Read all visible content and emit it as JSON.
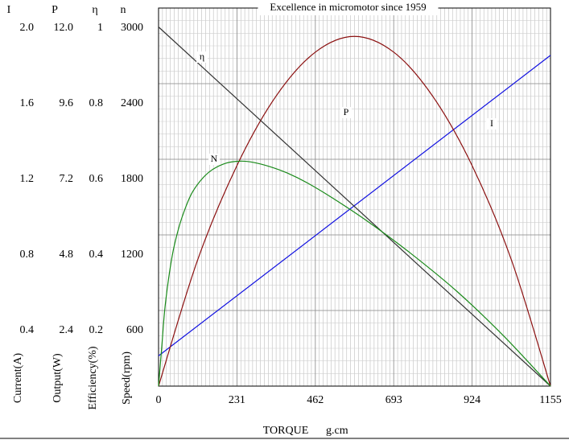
{
  "chart_data": {
    "type": "line",
    "title": "Excellence in micromotor since 1959",
    "xlabel": "TORQUE",
    "xunit": "g.cm",
    "xlim": [
      0,
      1155
    ],
    "x_ticks": [
      "0",
      "231",
      "462",
      "693",
      "924",
      "1155"
    ],
    "grid": true,
    "y_axes": [
      {
        "key": "I",
        "header": "I",
        "title": "Current(A)",
        "ticks": [
          "2.0",
          "1.6",
          "1.2",
          "0.8",
          "0.4"
        ],
        "range": [
          0,
          2.0
        ]
      },
      {
        "key": "P",
        "header": "P",
        "title": "Output(W)",
        "ticks": [
          "12.0",
          "9.6",
          "7.2",
          "4.8",
          "2.4"
        ],
        "range": [
          0,
          12.0
        ]
      },
      {
        "key": "eta",
        "header": "η",
        "title": "Efficiency(%)",
        "ticks": [
          "1",
          "0.8",
          "0.6",
          "0.4",
          "0.2"
        ],
        "range": [
          0,
          1
        ]
      },
      {
        "key": "n",
        "header": "n",
        "title": "Speed(rpm)",
        "ticks": [
          "3000",
          "2400",
          "1800",
          "1200",
          "600"
        ],
        "range": [
          0,
          3000
        ]
      }
    ],
    "series": [
      {
        "name": "I",
        "axis": "I",
        "color": "#1010e0",
        "x": [
          0,
          1155
        ],
        "y": [
          0.16,
          1.75
        ]
      },
      {
        "name": "P",
        "axis": "P",
        "color": "#8b1010",
        "x": [
          0,
          115,
          231,
          346,
          462,
          577,
          693,
          808,
          924,
          1040,
          1155
        ],
        "y": [
          0,
          4.0,
          7.0,
          9.2,
          10.6,
          11.1,
          10.6,
          9.2,
          7.0,
          4.0,
          0
        ]
      },
      {
        "name": "η",
        "axis": "eta",
        "color": "#333333",
        "x": [
          0,
          1155
        ],
        "y": [
          0.95,
          0.0
        ]
      },
      {
        "name": "N",
        "axis": "n",
        "color": "#1a8a1a",
        "x": [
          0,
          10,
          20,
          40,
          60,
          80,
          100,
          130,
          160,
          200,
          240,
          280,
          330,
          380,
          440,
          520,
          620,
          740,
          880,
          1020,
          1155
        ],
        "y": [
          0,
          330,
          650,
          1030,
          1260,
          1420,
          1540,
          1650,
          1720,
          1770,
          1785,
          1775,
          1740,
          1690,
          1610,
          1480,
          1300,
          1060,
          750,
          390,
          0
        ]
      }
    ]
  }
}
